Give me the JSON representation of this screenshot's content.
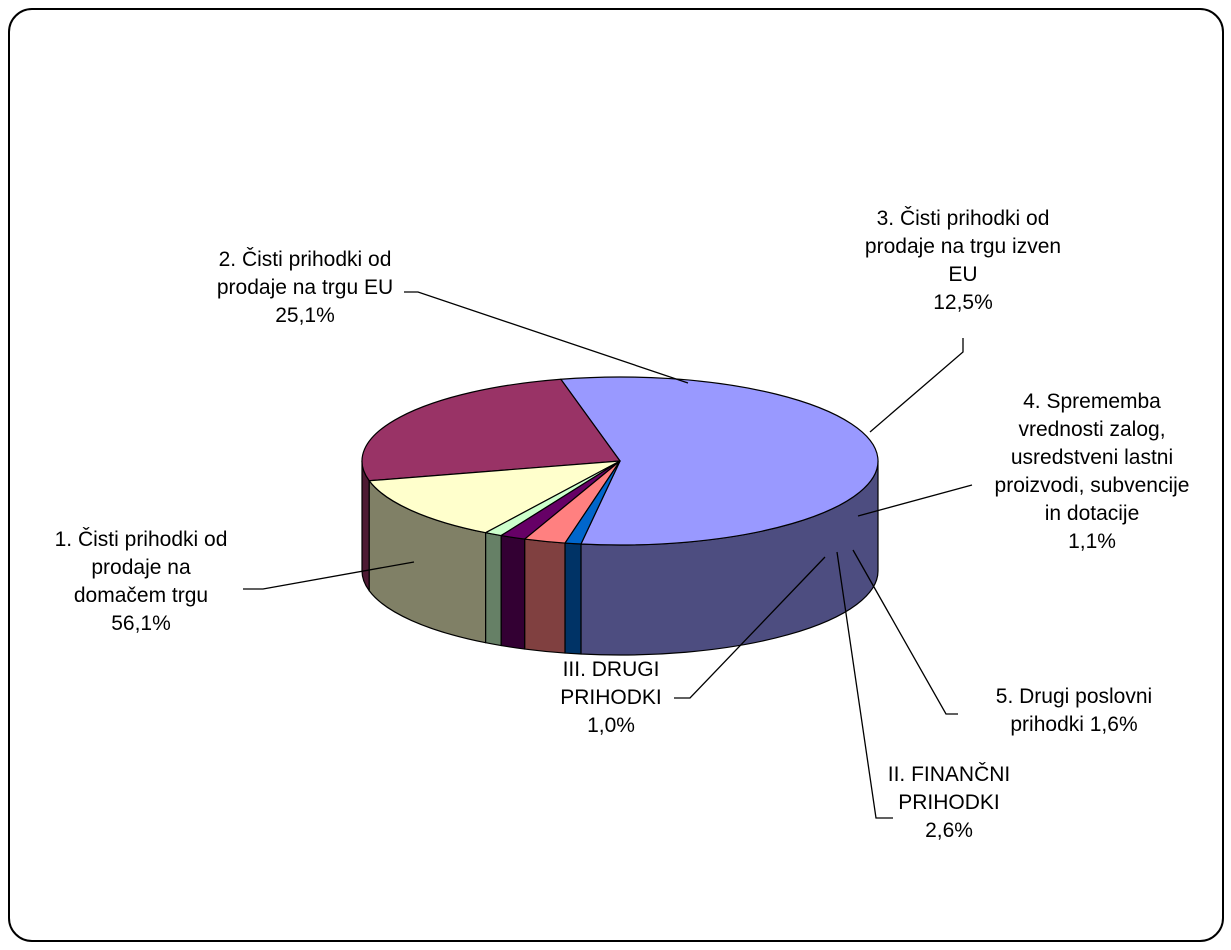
{
  "chart_data": {
    "type": "pie",
    "title": "",
    "slices": [
      {
        "label_lines": [
          "1. Čisti prihodki od",
          "prodaje na",
          "domačem trgu",
          "56,1%"
        ],
        "value": 56.1,
        "color": "#9999FF"
      },
      {
        "label_lines": [
          "2. Čisti prihodki od",
          "prodaje na trgu EU",
          "25,1%"
        ],
        "value": 25.1,
        "color": "#993366"
      },
      {
        "label_lines": [
          "3. Čisti prihodki od",
          "prodaje na trgu izven",
          "EU",
          "12,5%"
        ],
        "value": 12.5,
        "color": "#FFFFCC"
      },
      {
        "label_lines": [
          "4. Sprememba",
          "vrednosti zalog,",
          "usredstveni lastni",
          "proizvodi, subvencije",
          "in dotacije",
          "1,1%"
        ],
        "value": 1.1,
        "color": "#CCFFCC"
      },
      {
        "label_lines": [
          "5. Drugi poslovni",
          "prihodki 1,6%"
        ],
        "value": 1.6,
        "color": "#660066"
      },
      {
        "label_lines": [
          "II. FINANČNI",
          "PRIHODKI",
          "2,6%"
        ],
        "value": 2.6,
        "color": "#FF8080"
      },
      {
        "label_lines": [
          "III. DRUGI",
          "PRIHODKI",
          "1,0%"
        ],
        "value": 1.0,
        "color": "#0066CC"
      }
    ]
  }
}
